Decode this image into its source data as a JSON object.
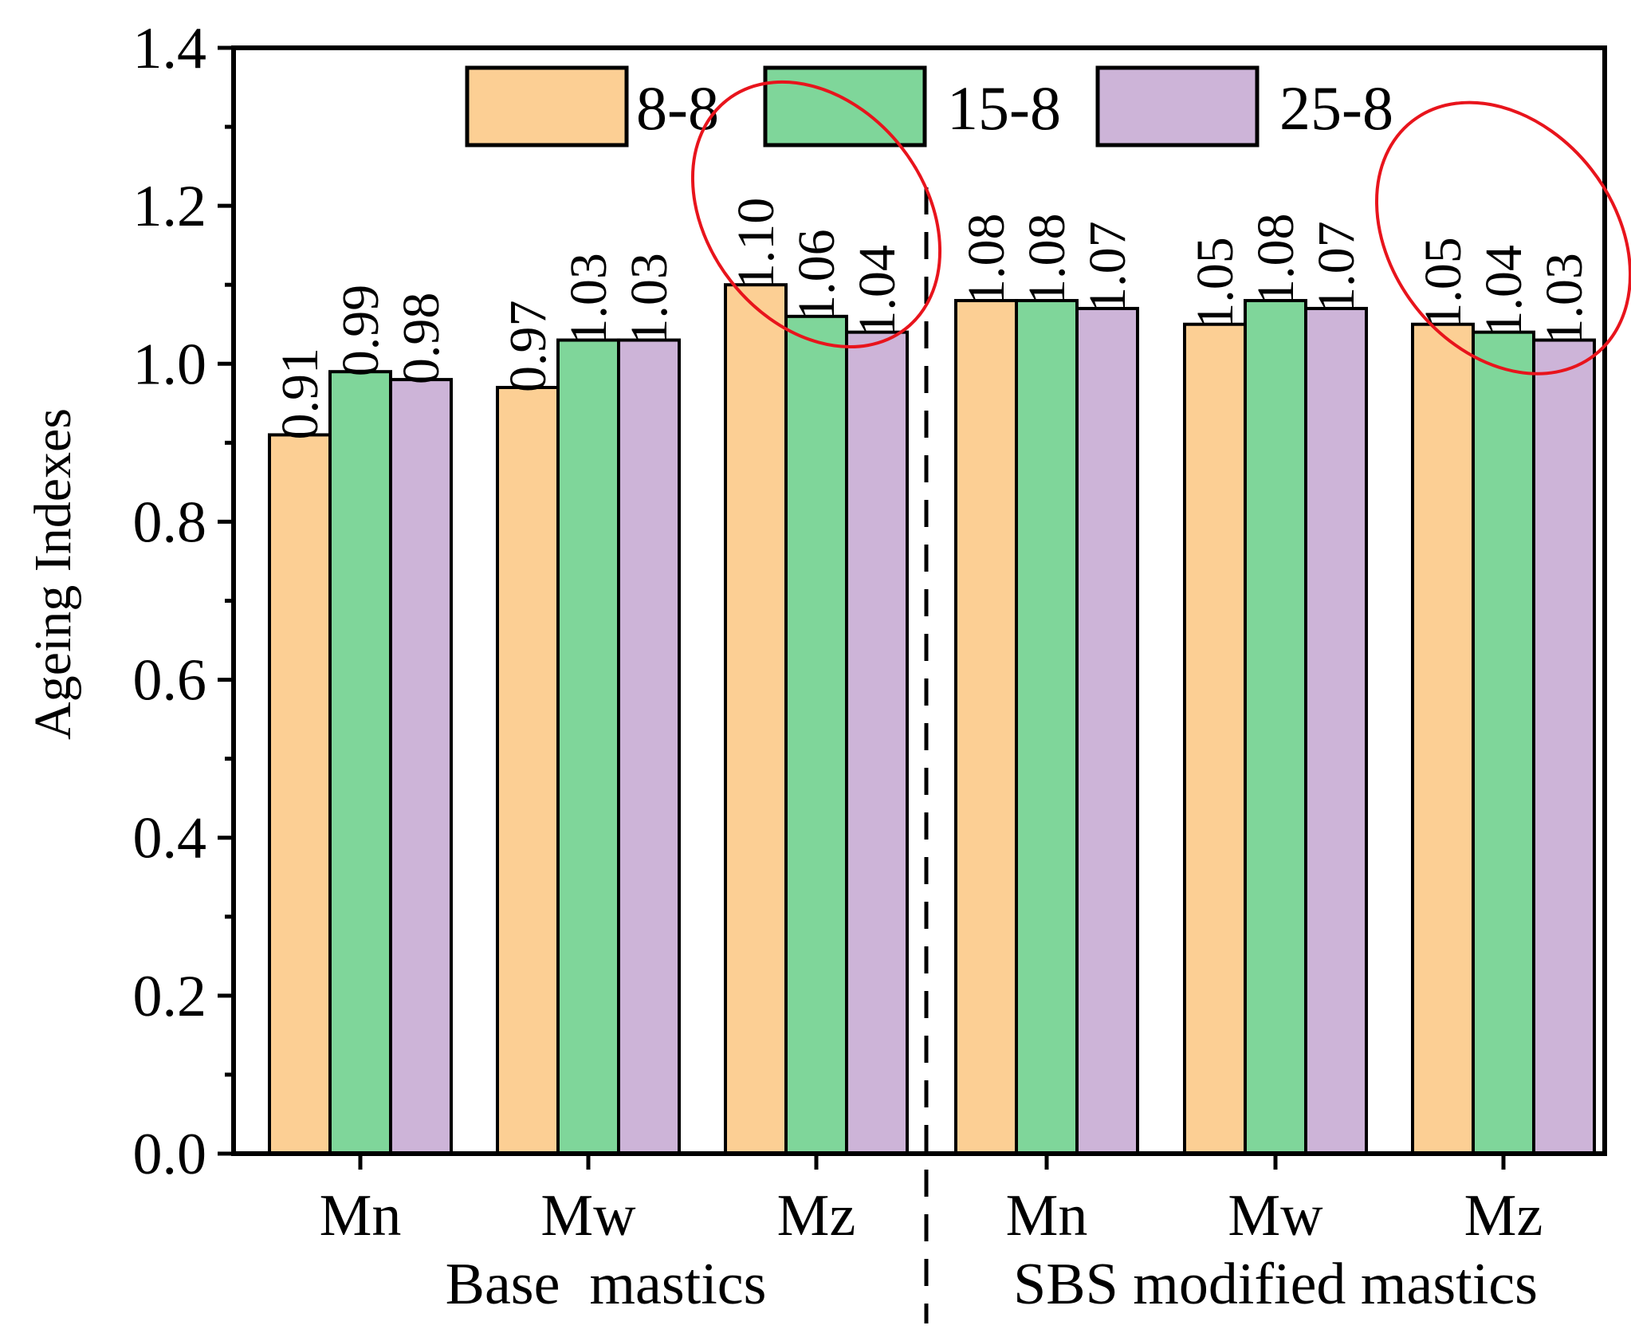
{
  "chart_data": {
    "type": "bar",
    "title": "",
    "xlabel": "",
    "ylabel": "Ageing Indexes",
    "ylim": [
      0.0,
      1.4
    ],
    "yticks": [
      "0.0",
      "0.2",
      "0.4",
      "0.6",
      "0.8",
      "1.0",
      "1.2",
      "1.4"
    ],
    "grid": false,
    "legend_position": "top",
    "groups": [
      {
        "name": "Base  mastics",
        "categories": [
          "Mn",
          "Mw",
          "Mz"
        ]
      },
      {
        "name": "SBS modified mastics",
        "categories": [
          "Mn",
          "Mw",
          "Mz"
        ]
      }
    ],
    "categories": [
      "Mn",
      "Mw",
      "Mz",
      "Mn",
      "Mw",
      "Mz"
    ],
    "series": [
      {
        "name": "8-8",
        "color": "#fccf94",
        "values": [
          0.91,
          0.97,
          1.1,
          1.08,
          1.05,
          1.05
        ],
        "labels": [
          "0.91",
          "0.97",
          "1.10",
          "1.08",
          "1.05",
          "1.05"
        ]
      },
      {
        "name": "15-8",
        "color": "#7fd69a",
        "values": [
          0.99,
          1.03,
          1.06,
          1.08,
          1.08,
          1.04
        ],
        "labels": [
          "0.99",
          "1.03",
          "1.06",
          "1.08",
          "1.08",
          "1.04"
        ]
      },
      {
        "name": "25-8",
        "color": "#cdb4d8",
        "values": [
          0.98,
          1.03,
          1.04,
          1.07,
          1.07,
          1.03
        ],
        "labels": [
          "0.98",
          "1.03",
          "1.04",
          "1.07",
          "1.07",
          "1.03"
        ]
      }
    ],
    "annotations": [
      {
        "type": "ellipse",
        "color": "#e8141c",
        "target_category_index": 2
      },
      {
        "type": "ellipse",
        "color": "#e8141c",
        "target_category_index": 5
      },
      {
        "type": "dashed-divider",
        "between_groups": true
      }
    ]
  }
}
